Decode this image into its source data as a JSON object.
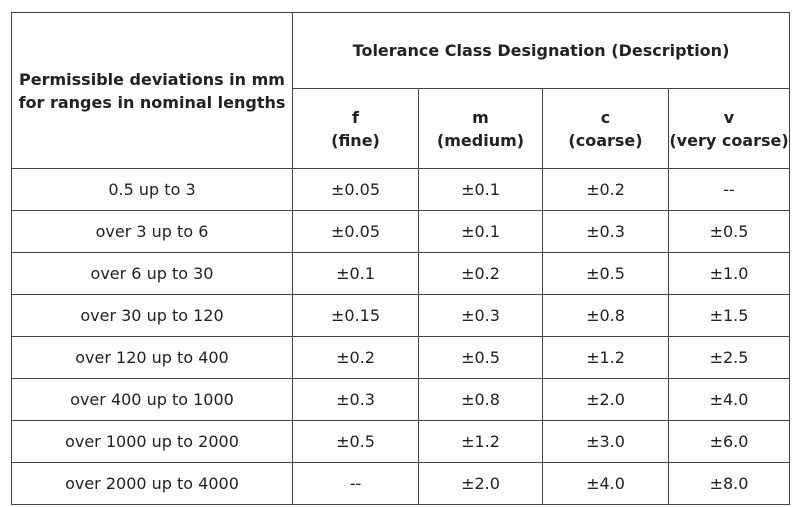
{
  "header": {
    "left_line1": "Permissible deviations in mm",
    "left_line2": "for ranges in nominal lengths",
    "group_title": "Tolerance Class Designation (Description)"
  },
  "classes": [
    {
      "code": "f",
      "desc": "(fine)"
    },
    {
      "code": "m",
      "desc": "(medium)"
    },
    {
      "code": "c",
      "desc": "(coarse)"
    },
    {
      "code": "v",
      "desc": "(very coarse)"
    }
  ],
  "rows": [
    {
      "range": "0.5 up to 3",
      "values": [
        "±0.05",
        "±0.1",
        "±0.2",
        "--"
      ]
    },
    {
      "range": "over 3 up to 6",
      "values": [
        "±0.05",
        "±0.1",
        "±0.3",
        "±0.5"
      ]
    },
    {
      "range": "over 6 up to 30",
      "values": [
        "±0.1",
        "±0.2",
        "±0.5",
        "±1.0"
      ]
    },
    {
      "range": "over 30 up to 120",
      "values": [
        "±0.15",
        "±0.3",
        "±0.8",
        "±1.5"
      ]
    },
    {
      "range": "over 120 up to 400",
      "values": [
        "±0.2",
        "±0.5",
        "±1.2",
        "±2.5"
      ]
    },
    {
      "range": "over 400 up to 1000",
      "values": [
        "±0.3",
        "±0.8",
        "±2.0",
        "±4.0"
      ]
    },
    {
      "range": "over 1000 up to 2000",
      "values": [
        "±0.5",
        "±1.2",
        "±3.0",
        "±6.0"
      ]
    },
    {
      "range": "over 2000 up to 4000",
      "values": [
        "--",
        "±2.0",
        "±4.0",
        "±8.0"
      ]
    }
  ]
}
